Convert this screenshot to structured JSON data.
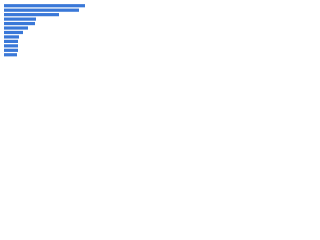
{
  "chart_data": {
    "type": "bar",
    "orientation": "horizontal",
    "categories": [
      null,
      null,
      null,
      null,
      null,
      null,
      null,
      null,
      null,
      null,
      null,
      null
    ],
    "values": [
      81,
      75,
      55,
      32,
      31,
      24,
      19,
      15,
      14,
      14,
      14,
      13
    ],
    "color": "#3a78d8",
    "xlim": [
      0,
      100
    ]
  }
}
